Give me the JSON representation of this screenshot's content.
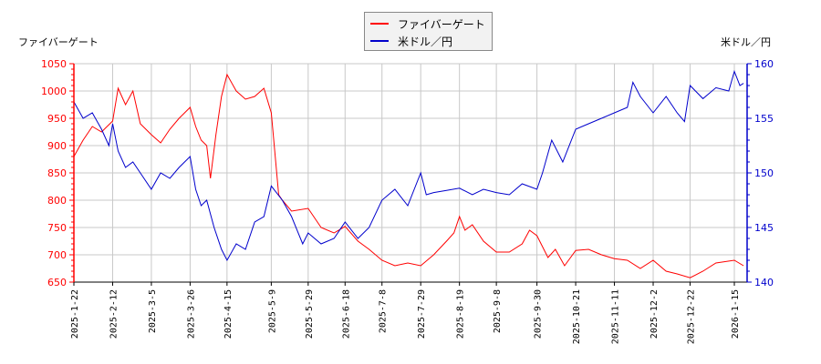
{
  "chart_data": {
    "type": "line",
    "title": "",
    "legend": {
      "position": "top-center",
      "entries": [
        "ファイバーゲート",
        "米ドル／円"
      ]
    },
    "grid": true,
    "x_tick_labels": [
      "2025-1-22",
      "2025-2-12",
      "2025-3-5",
      "2025-3-26",
      "2025-4-15",
      "2025-5-9",
      "2025-5-29",
      "2025-6-18",
      "2025-7-8",
      "2025-7-29",
      "2025-8-19",
      "2025-9-8",
      "2025-9-30",
      "2025-10-21",
      "2025-11-11",
      "2025-12-2",
      "2025-12-22",
      "2026-1-15"
    ],
    "left_axis": {
      "label": "ファイバーゲート",
      "ylim": [
        650,
        1050
      ],
      "ticks": [
        650,
        700,
        750,
        800,
        850,
        900,
        950,
        1000,
        1050
      ],
      "color": "#ff0000"
    },
    "right_axis": {
      "label": "米ドル／円",
      "ylim": [
        140,
        160
      ],
      "ticks": [
        140,
        145,
        150,
        155,
        160
      ],
      "color": "#0000cc"
    },
    "series": [
      {
        "name": "ファイバーゲート",
        "axis": "left",
        "color": "#ff0000",
        "x": [
          "2025-1-22",
          "2025-1-27",
          "2025-2-1",
          "2025-2-6",
          "2025-2-12",
          "2025-2-15",
          "2025-2-19",
          "2025-2-23",
          "2025-2-27",
          "2025-3-5",
          "2025-3-10",
          "2025-3-15",
          "2025-3-20",
          "2025-3-26",
          "2025-3-29",
          "2025-4-1",
          "2025-4-4",
          "2025-4-6",
          "2025-4-9",
          "2025-4-12",
          "2025-4-15",
          "2025-4-20",
          "2025-4-25",
          "2025-4-30",
          "2025-5-5",
          "2025-5-9",
          "2025-5-13",
          "2025-5-15",
          "2025-5-20",
          "2025-5-29",
          "2025-6-5",
          "2025-6-12",
          "2025-6-18",
          "2025-6-25",
          "2025-7-1",
          "2025-7-8",
          "2025-7-15",
          "2025-7-22",
          "2025-7-29",
          "2025-8-5",
          "2025-8-12",
          "2025-8-16",
          "2025-8-19",
          "2025-8-22",
          "2025-8-26",
          "2025-9-1",
          "2025-9-8",
          "2025-9-15",
          "2025-9-22",
          "2025-9-26",
          "2025-9-30",
          "2025-10-6",
          "2025-10-10",
          "2025-10-15",
          "2025-10-21",
          "2025-10-28",
          "2025-11-4",
          "2025-11-11",
          "2025-11-18",
          "2025-11-25",
          "2025-12-2",
          "2025-12-9",
          "2025-12-15",
          "2025-12-22",
          "2025-12-29",
          "2026-1-5",
          "2026-1-15",
          "2026-1-20"
        ],
        "values": [
          880,
          910,
          935,
          925,
          945,
          1005,
          975,
          1000,
          940,
          920,
          905,
          930,
          950,
          970,
          935,
          910,
          900,
          840,
          920,
          990,
          1030,
          1000,
          985,
          990,
          1005,
          960,
          810,
          800,
          780,
          785,
          750,
          740,
          752,
          725,
          710,
          690,
          680,
          685,
          680,
          700,
          725,
          740,
          770,
          745,
          755,
          725,
          705,
          705,
          720,
          745,
          735,
          695,
          710,
          680,
          708,
          710,
          700,
          693,
          690,
          675,
          690,
          670,
          665,
          658,
          670,
          685,
          690,
          680
        ]
      },
      {
        "name": "米ドル／円",
        "axis": "right",
        "color": "#0000cc",
        "x": [
          "2025-1-22",
          "2025-1-27",
          "2025-2-1",
          "2025-2-6",
          "2025-2-10",
          "2025-2-12",
          "2025-2-15",
          "2025-2-19",
          "2025-2-23",
          "2025-2-27",
          "2025-3-5",
          "2025-3-10",
          "2025-3-15",
          "2025-3-20",
          "2025-3-26",
          "2025-3-29",
          "2025-4-1",
          "2025-4-4",
          "2025-4-8",
          "2025-4-12",
          "2025-4-15",
          "2025-4-20",
          "2025-4-25",
          "2025-4-30",
          "2025-5-5",
          "2025-5-9",
          "2025-5-15",
          "2025-5-20",
          "2025-5-26",
          "2025-5-29",
          "2025-6-5",
          "2025-6-12",
          "2025-6-18",
          "2025-6-25",
          "2025-7-1",
          "2025-7-8",
          "2025-7-15",
          "2025-7-22",
          "2025-7-29",
          "2025-8-1",
          "2025-8-5",
          "2025-8-12",
          "2025-8-19",
          "2025-8-26",
          "2025-9-1",
          "2025-9-8",
          "2025-9-15",
          "2025-9-22",
          "2025-9-30",
          "2025-10-3",
          "2025-10-8",
          "2025-10-14",
          "2025-10-21",
          "2025-10-28",
          "2025-11-4",
          "2025-11-11",
          "2025-11-18",
          "2025-11-21",
          "2025-11-25",
          "2025-12-2",
          "2025-12-9",
          "2025-12-15",
          "2025-12-19",
          "2025-12-22",
          "2025-12-29",
          "2026-1-5",
          "2026-1-12",
          "2026-1-15",
          "2026-1-18",
          "2026-1-20"
        ],
        "values": [
          156.5,
          155.0,
          155.5,
          154.0,
          152.5,
          154.5,
          152.0,
          150.5,
          151.0,
          150.0,
          148.5,
          150.0,
          149.5,
          150.5,
          151.5,
          148.5,
          147.0,
          147.5,
          145.0,
          143.0,
          142.0,
          143.5,
          143.0,
          145.5,
          146.0,
          148.8,
          147.5,
          146.0,
          143.5,
          144.5,
          143.5,
          144.0,
          145.5,
          144.0,
          145.0,
          147.5,
          148.5,
          147.0,
          150.0,
          148.0,
          148.2,
          148.4,
          148.6,
          148.0,
          148.5,
          148.2,
          148.0,
          149.0,
          148.5,
          150.0,
          153.0,
          151.0,
          154.0,
          154.5,
          155.0,
          155.5,
          156.0,
          158.3,
          157.0,
          155.5,
          157.0,
          155.5,
          154.7,
          158.0,
          156.8,
          157.8,
          157.5,
          159.3,
          158.0,
          158.2
        ]
      }
    ]
  },
  "legend": {
    "items": [
      {
        "label": "ファイバーゲート",
        "color": "#ff0000"
      },
      {
        "label": "米ドル／円",
        "color": "#0000cc"
      }
    ]
  },
  "axes": {
    "left_title": "ファイバーゲート",
    "right_title": "米ドル／円"
  }
}
